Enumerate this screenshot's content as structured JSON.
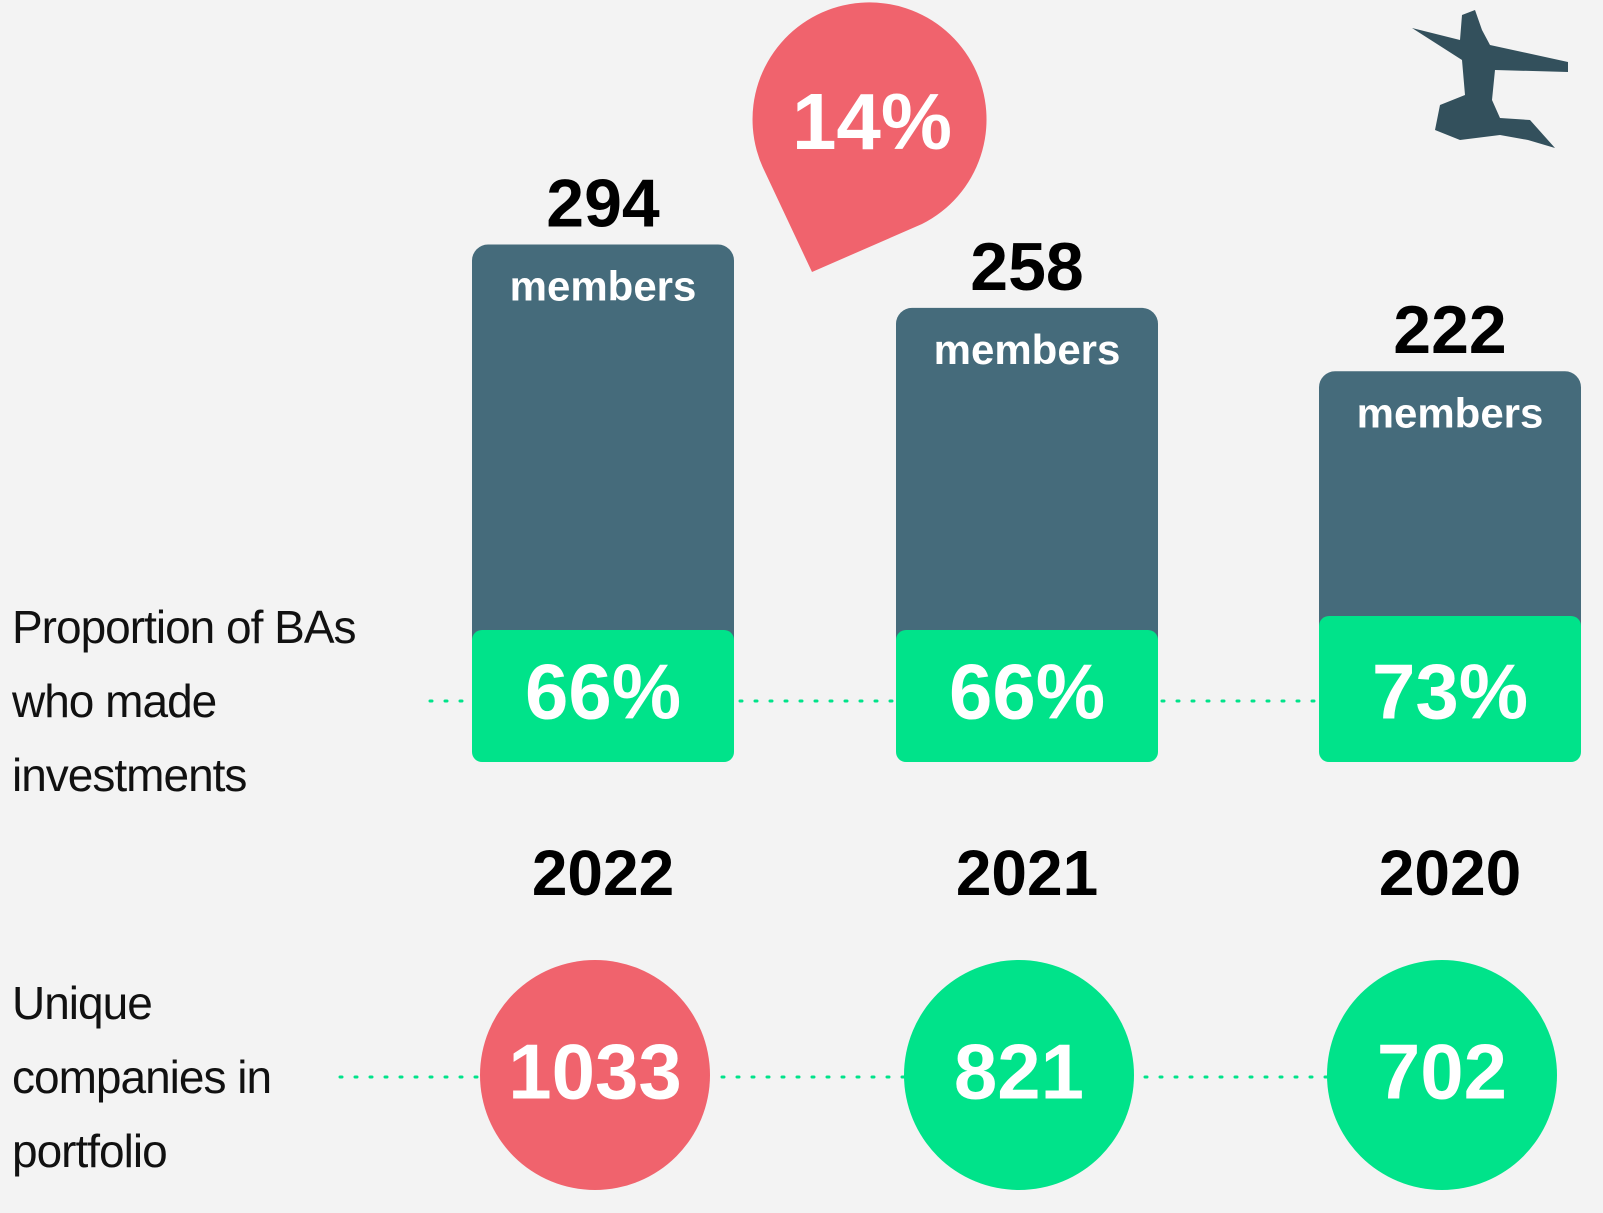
{
  "chart_data": {
    "type": "bar",
    "categories": [
      "2022",
      "2021",
      "2020"
    ],
    "values": [
      294,
      258,
      222
    ],
    "unit_label": "members",
    "color": "#456b7b",
    "annotation": {
      "value": 14,
      "label": "14%",
      "color": "#f0636d"
    },
    "rows": [
      {
        "label": "Proportion of BAs who made investments",
        "values": [
          66,
          66,
          73
        ],
        "value_labels": [
          "66%",
          "66%",
          "73%"
        ],
        "color": "#00e38a"
      },
      {
        "label": "Unique companies in portfolio",
        "values": [
          1033,
          821,
          702
        ],
        "colors": [
          "#f0636d",
          "#00e38a",
          "#00e38a"
        ]
      }
    ]
  }
}
